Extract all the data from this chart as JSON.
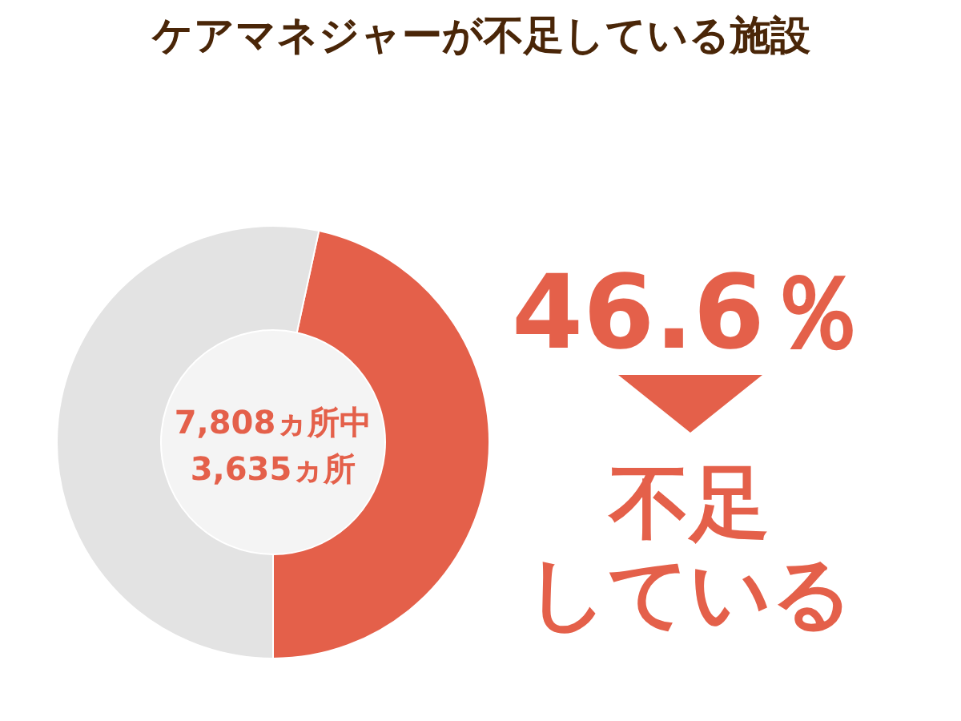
{
  "chart_data": {
    "type": "donut",
    "title": "ケアマネジャーが不足している施設",
    "categories": [
      null,
      null
    ],
    "values": [
      46.6,
      53.4
    ],
    "colors": [
      "#e4604a",
      "#e3e3e3"
    ],
    "annotations": [
      "7,808ヵ所中",
      "3,635ヵ所",
      "46.6％",
      "不足",
      "している"
    ]
  }
}
